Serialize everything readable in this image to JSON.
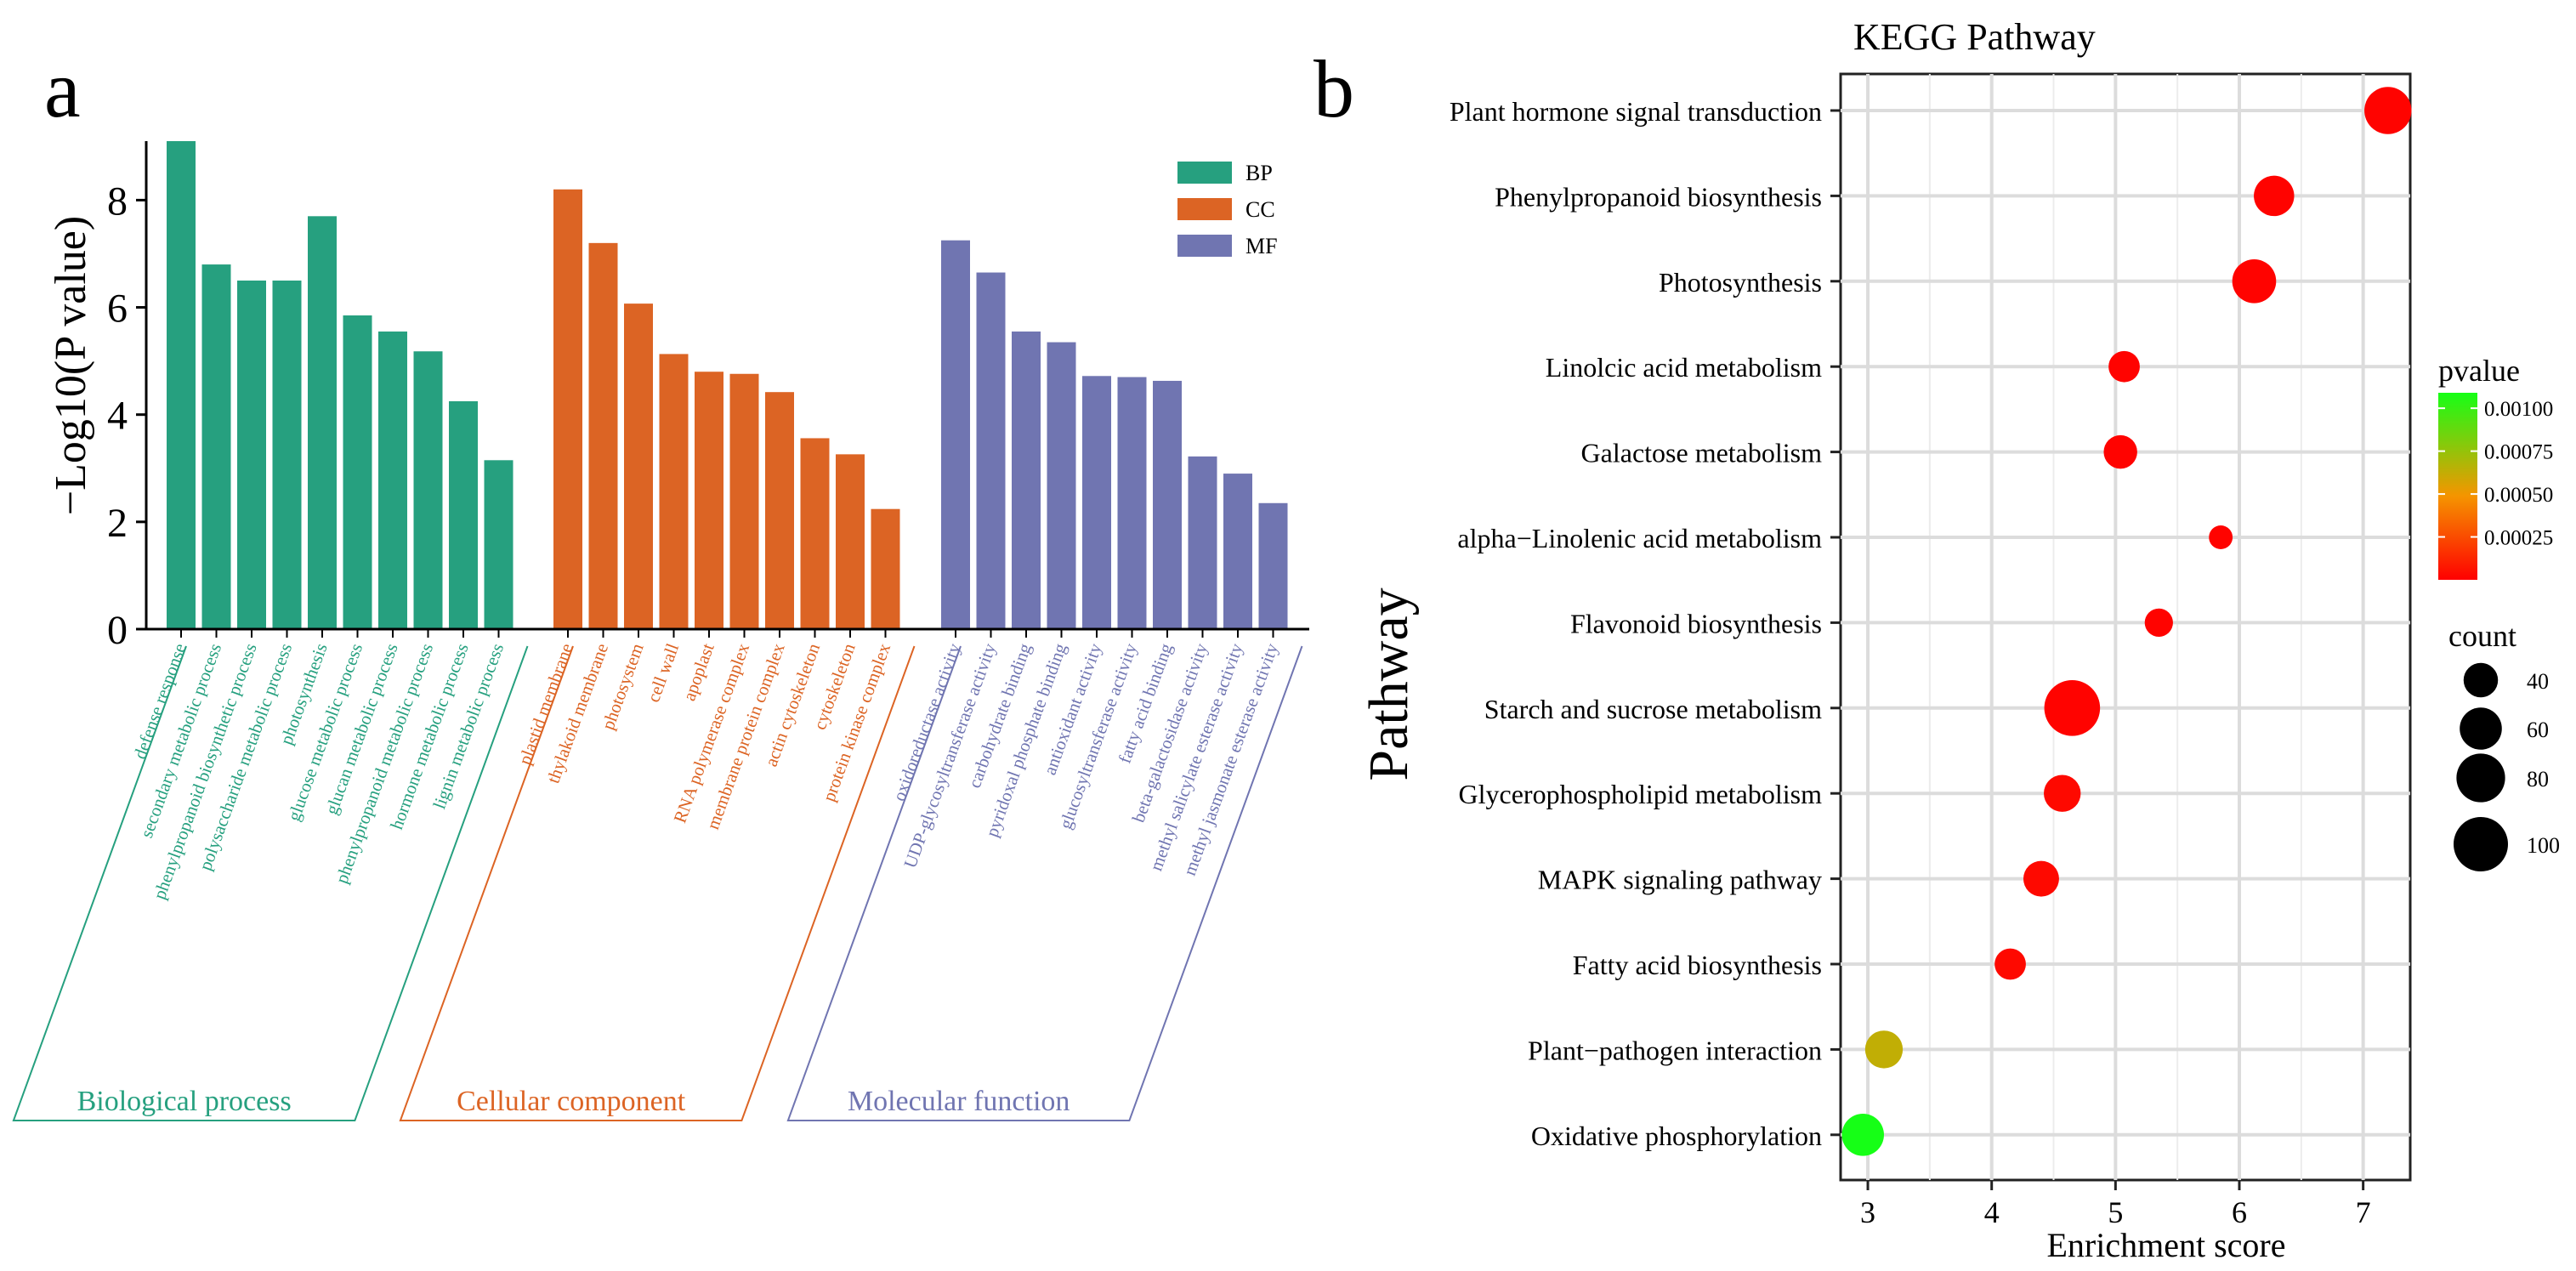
{
  "panel_a_label": "a",
  "panel_b_label": "b",
  "chart_data": [
    {
      "type": "bar",
      "ylabel": "−Log10(P value)",
      "xlabel": "",
      "ylim": [
        0,
        9.1
      ],
      "y_ticks": [
        "0",
        "2",
        "4",
        "6",
        "8"
      ],
      "y_tick_values": [
        0,
        2,
        4,
        6,
        8
      ],
      "legend_position": "top-right",
      "legend": [
        {
          "key": "BP",
          "color": "#26a07f"
        },
        {
          "key": "CC",
          "color": "#dc6424"
        },
        {
          "key": "MF",
          "color": "#7075b1"
        }
      ],
      "series": [
        {
          "name": "BP",
          "group_label": "Biological process",
          "color": "#26a07f",
          "categories": [
            "defense response",
            "secondary metabolic process",
            "phenylpropanoid biosynthetic process",
            "polysaccharide metabolic process",
            "photosynthesis",
            "glucose metabolic process",
            "glucan metabolic process",
            "phenylpropanoid metabolic process",
            "hormone metabolic process",
            "lignin metabolic process"
          ],
          "values": [
            9.1,
            6.8,
            6.5,
            6.5,
            7.7,
            5.85,
            5.55,
            5.18,
            4.25,
            3.15
          ]
        },
        {
          "name": "CC",
          "group_label": "Cellular component",
          "color": "#dc6424",
          "categories": [
            "plastid membrane",
            "thylakoid membrane",
            "photosystem",
            "cell wall",
            "apoplast",
            "RNA polymerase complex",
            "membrane protein complex",
            "actin cytoskeleton",
            "cytoskeleton",
            "protein kinase complex"
          ],
          "values": [
            8.2,
            7.2,
            6.07,
            5.13,
            4.8,
            4.76,
            4.42,
            3.56,
            3.26,
            2.24
          ]
        },
        {
          "name": "MF",
          "group_label": "Molecular function",
          "color": "#7075b1",
          "categories": [
            "oxidoreductase activity",
            "UDP-glycosyltransferase activity",
            "carbohydrate binding",
            "pyridoxal phosphate binding",
            "antioxidant activity",
            "glucosyltransferase activity",
            "fatty acid binding",
            "beta-galactosidase activity",
            "methyl salicylate esterase activity",
            "methyl jasmonate esterase activity"
          ],
          "values": [
            7.25,
            6.65,
            5.55,
            5.35,
            4.72,
            4.7,
            4.63,
            3.22,
            2.9,
            2.35
          ]
        }
      ]
    },
    {
      "type": "scatter",
      "title": "KEGG Pathway",
      "xlabel": "Enrichment score",
      "ylabel": "Pathway",
      "xlim": [
        2.78,
        7.38
      ],
      "x_ticks": [
        "3",
        "4",
        "5",
        "6",
        "7"
      ],
      "x_tick_values": [
        3,
        4,
        5,
        6,
        7
      ],
      "grid": true,
      "categories": [
        "Plant hormone signal transduction",
        "Phenylpropanoid biosynthesis",
        "Photosynthesis",
        "Linolcic acid metabolism",
        "Galactose metabolism",
        "alpha−Linolenic acid metabolism",
        "Flavonoid biosynthesis",
        "Starch and sucrose metabolism",
        "Glycerophospholipid metabolism",
        "MAPK signaling pathway",
        "Fatty acid biosynthesis",
        "Plant−pathogen interaction",
        "Oxidative phosphorylation"
      ],
      "points": [
        {
          "pathway": "Plant hormone signal transduction",
          "enrichment": 7.2,
          "count": 75,
          "pvalue": 1e-05
        },
        {
          "pathway": "Phenylpropanoid biosynthesis",
          "enrichment": 6.28,
          "count": 55,
          "pvalue": 1e-05
        },
        {
          "pathway": "Photosynthesis",
          "enrichment": 6.12,
          "count": 65,
          "pvalue": 1e-05
        },
        {
          "pathway": "Linolcic acid metabolism",
          "enrichment": 5.07,
          "count": 33,
          "pvalue": 1e-05
        },
        {
          "pathway": "Galactose metabolism",
          "enrichment": 5.04,
          "count": 38,
          "pvalue": 1e-05
        },
        {
          "pathway": "alpha−Linolenic acid metabolism",
          "enrichment": 5.85,
          "count": 19,
          "pvalue": 1e-05
        },
        {
          "pathway": "Flavonoid biosynthesis",
          "enrichment": 5.35,
          "count": 27,
          "pvalue": 1e-05
        },
        {
          "pathway": "Starch and sucrose metabolism",
          "enrichment": 4.65,
          "count": 105,
          "pvalue": 1e-05
        },
        {
          "pathway": "Glycerophospholipid metabolism",
          "enrichment": 4.57,
          "count": 46,
          "pvalue": 3e-05
        },
        {
          "pathway": "MAPK signaling pathway",
          "enrichment": 4.4,
          "count": 43,
          "pvalue": 3e-05
        },
        {
          "pathway": "Fatty acid biosynthesis",
          "enrichment": 4.15,
          "count": 33,
          "pvalue": 3e-05
        },
        {
          "pathway": "Plant−pathogen interaction",
          "enrichment": 3.13,
          "count": 48,
          "pvalue": 0.00063
        },
        {
          "pathway": "Oxidative phosphorylation",
          "enrichment": 2.96,
          "count": 60,
          "pvalue": 0.00109
        }
      ],
      "color_legend": {
        "title": "pvalue",
        "range": [
          0,
          0.00109
        ],
        "low_color": "#ff0000",
        "mid_color": "#f59500",
        "high_color": "#16ff16",
        "ticks": [
          "0.00025",
          "0.00050",
          "0.00075",
          "0.00100"
        ],
        "tick_values": [
          0.00025,
          0.0005,
          0.00075,
          0.001
        ]
      },
      "size_legend": {
        "title": "count",
        "labels": [
          "40",
          "60",
          "80",
          "100"
        ],
        "values": [
          40,
          60,
          80,
          100
        ]
      }
    }
  ]
}
